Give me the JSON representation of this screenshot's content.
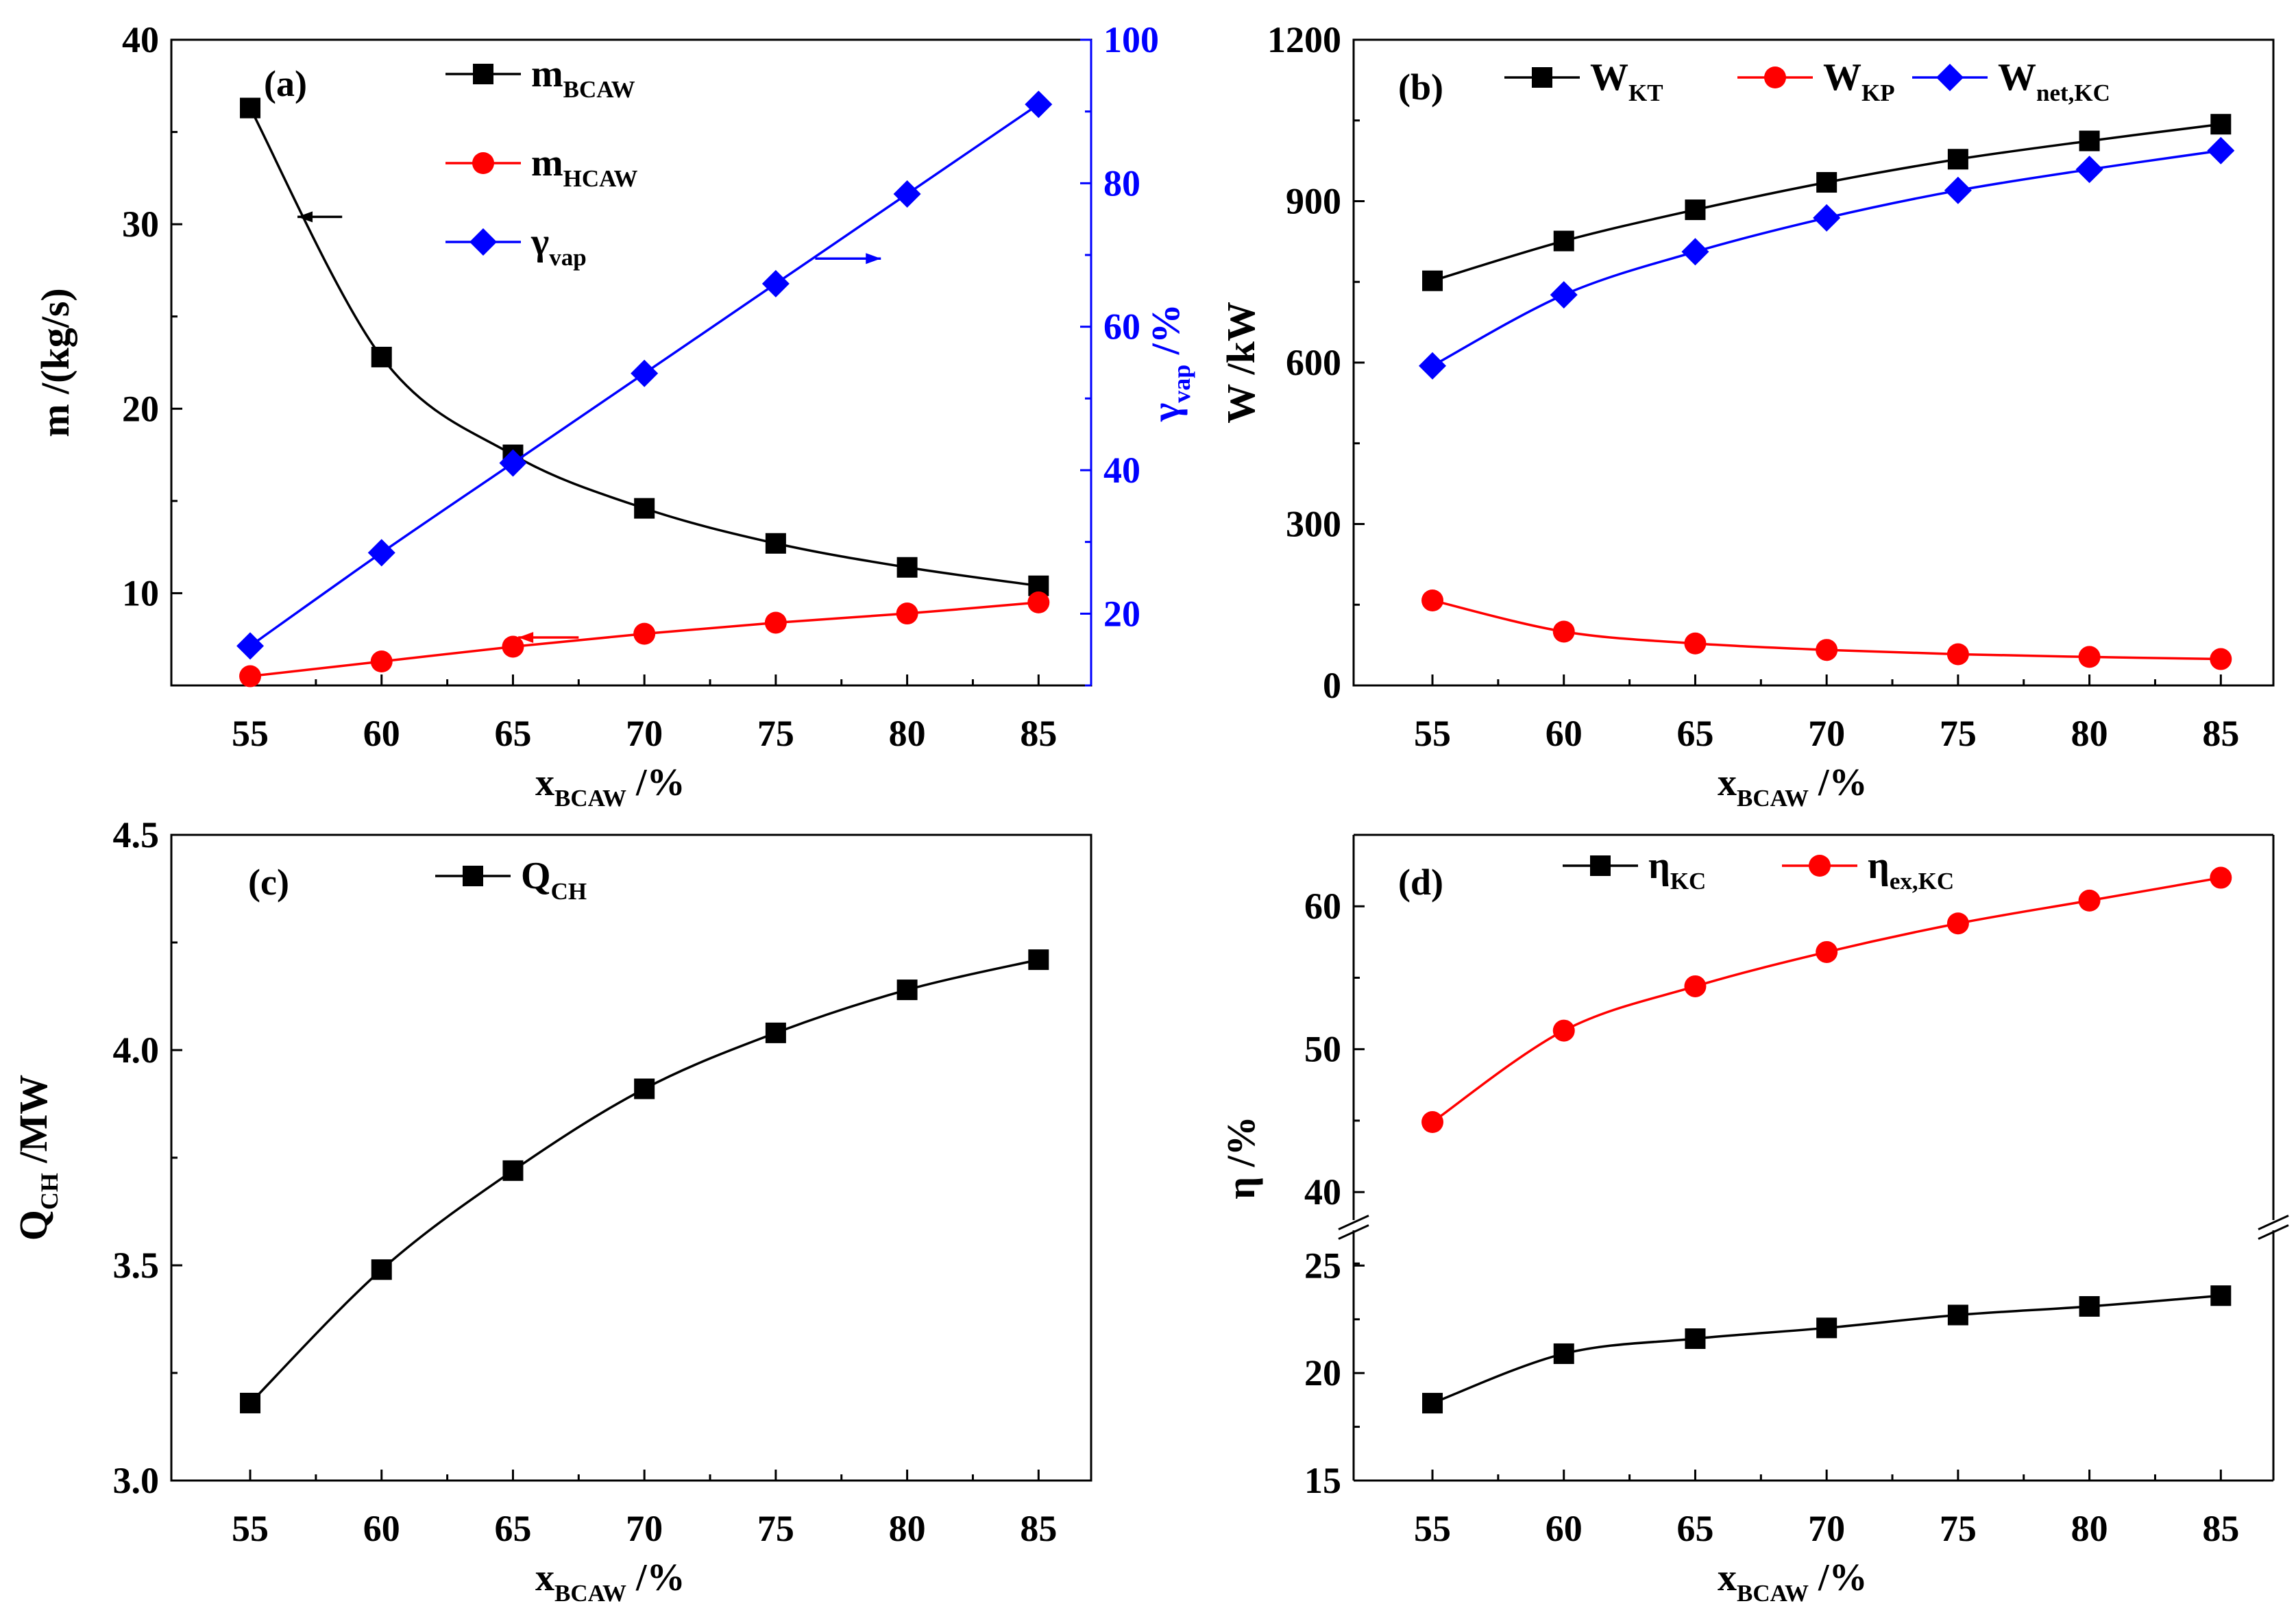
{
  "chart_data": [
    {
      "id": "a",
      "type": "line",
      "panel_label": "(a)",
      "xlabel": {
        "main": "x",
        "sub": "BCAW",
        "tail": " /%"
      },
      "ylabel": {
        "main": "m /(kg/s)"
      },
      "y2label": {
        "main": "γ",
        "sub": "vap",
        "tail": " /%"
      },
      "x": [
        55,
        60,
        65,
        70,
        75,
        80,
        85
      ],
      "xlim": [
        52,
        87
      ],
      "xticks": [
        55,
        60,
        65,
        70,
        75,
        80,
        85
      ],
      "ylim": [
        5,
        40
      ],
      "yticks": [
        10,
        20,
        30,
        40
      ],
      "y2lim": [
        10,
        100
      ],
      "y2ticks": [
        20,
        40,
        60,
        80,
        100
      ],
      "series": [
        {
          "name": "m",
          "sub": "BCAW",
          "color": "#000000",
          "marker": "square",
          "axis": "left",
          "values": [
            36.3,
            22.8,
            17.5,
            14.6,
            12.7,
            11.4,
            10.4
          ]
        },
        {
          "name": "m",
          "sub": "HCAW",
          "color": "#ff0000",
          "marker": "circle",
          "axis": "left",
          "values": [
            5.5,
            6.3,
            7.1,
            7.8,
            8.4,
            8.9,
            9.5
          ]
        },
        {
          "name": "γ",
          "sub": "vap",
          "color": "#0000ff",
          "marker": "diamond",
          "axis": "right",
          "values": [
            15.5,
            28.5,
            41.0,
            53.5,
            66.0,
            78.5,
            91.0
          ]
        }
      ],
      "arrows": [
        {
          "dir": "left",
          "color": "#000000",
          "x": [
            56.8,
            58.5
          ],
          "y": 30.4,
          "axis": "left"
        },
        {
          "dir": "left",
          "color": "#ff0000",
          "x": [
            65.2,
            67.5
          ],
          "y": 7.6,
          "axis": "left"
        },
        {
          "dir": "right",
          "color": "#0000ff",
          "x": [
            76.5,
            79.0
          ],
          "y": 69.5,
          "axis": "right"
        }
      ]
    },
    {
      "id": "b",
      "type": "line",
      "panel_label": "(b)",
      "xlabel": {
        "main": "x",
        "sub": "BCAW",
        "tail": " /%"
      },
      "ylabel": {
        "main": "W /kW"
      },
      "x": [
        55,
        60,
        65,
        70,
        75,
        80,
        85
      ],
      "xlim": [
        52,
        87
      ],
      "xticks": [
        55,
        60,
        65,
        70,
        75,
        80,
        85
      ],
      "ylim": [
        0,
        1200
      ],
      "yticks": [
        0,
        300,
        600,
        900,
        1200
      ],
      "series": [
        {
          "name": "W",
          "sub": "KT",
          "color": "#000000",
          "marker": "square",
          "values": [
            752,
            826,
            884,
            935,
            978,
            1012,
            1043
          ]
        },
        {
          "name": "W",
          "sub": "KP",
          "color": "#ff0000",
          "marker": "circle",
          "values": [
            158,
            100,
            78,
            66,
            58,
            53,
            49
          ]
        },
        {
          "name": "W",
          "sub": "net,KC",
          "color": "#0000ff",
          "marker": "diamond",
          "values": [
            594,
            726,
            806,
            869,
            920,
            959,
            994
          ]
        }
      ]
    },
    {
      "id": "c",
      "type": "line",
      "panel_label": "(c)",
      "xlabel": {
        "main": "x",
        "sub": "BCAW",
        "tail": " /%"
      },
      "ylabel": {
        "main": "Q",
        "sub": "CH",
        "tail": " /MW"
      },
      "x": [
        55,
        60,
        65,
        70,
        75,
        80,
        85
      ],
      "xlim": [
        52,
        87
      ],
      "xticks": [
        55,
        60,
        65,
        70,
        75,
        80,
        85
      ],
      "ylim": [
        3.0,
        4.5
      ],
      "yticks": [
        3.0,
        3.5,
        4.0,
        4.5
      ],
      "ydecimals": 1,
      "series": [
        {
          "name": "Q",
          "sub": "CH",
          "color": "#000000",
          "marker": "square",
          "values": [
            3.18,
            3.49,
            3.72,
            3.91,
            4.04,
            4.14,
            4.21
          ]
        }
      ]
    },
    {
      "id": "d",
      "type": "line",
      "panel_label": "(d)",
      "xlabel": {
        "main": "x",
        "sub": "BCAW",
        "tail": " /%"
      },
      "ylabel": {
        "main": "η /%"
      },
      "x": [
        55,
        60,
        65,
        70,
        75,
        80,
        85
      ],
      "xlim": [
        52,
        87
      ],
      "xticks": [
        55,
        60,
        65,
        70,
        75,
        80,
        85
      ],
      "broken_axis": {
        "upper": {
          "ylim": [
            39,
            65
          ],
          "yticks": [
            40,
            50,
            60
          ]
        },
        "lower": {
          "ylim": [
            15,
            26
          ],
          "yticks": [
            15,
            20,
            25
          ]
        }
      },
      "series": [
        {
          "name": "η",
          "sub": "KC",
          "color": "#000000",
          "marker": "square",
          "segment": "lower",
          "values": [
            18.6,
            20.9,
            21.6,
            22.1,
            22.7,
            23.1,
            23.6
          ]
        },
        {
          "name": "η",
          "sub": "ex,KC",
          "color": "#ff0000",
          "marker": "circle",
          "segment": "upper",
          "values": [
            44.9,
            51.3,
            54.4,
            56.8,
            58.8,
            60.4,
            62.0
          ]
        }
      ]
    }
  ]
}
